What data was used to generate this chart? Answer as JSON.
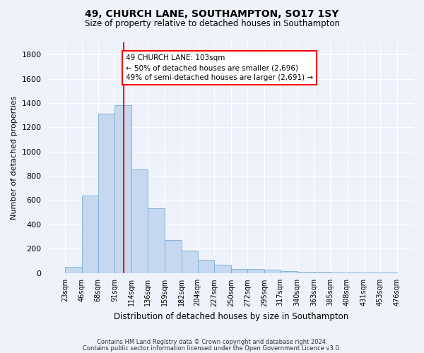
{
  "title1": "49, CHURCH LANE, SOUTHAMPTON, SO17 1SY",
  "title2": "Size of property relative to detached houses in Southampton",
  "xlabel": "Distribution of detached houses by size in Southampton",
  "ylabel": "Number of detached properties",
  "bar_color": "#c5d8f0",
  "bar_edgecolor": "#7aadd4",
  "background_color": "#eef2fb",
  "grid_color": "#ffffff",
  "vline_x": 103,
  "vline_color": "red",
  "bin_edges": [
    23,
    46,
    68,
    91,
    114,
    136,
    159,
    182,
    204,
    227,
    250,
    272,
    295,
    317,
    340,
    363,
    385,
    408,
    431,
    453,
    476
  ],
  "bar_heights": [
    50,
    640,
    1310,
    1380,
    850,
    530,
    270,
    185,
    105,
    65,
    35,
    35,
    28,
    15,
    10,
    8,
    5,
    5,
    5,
    5
  ],
  "annotation_line1": "49 CHURCH LANE: 103sqm",
  "annotation_line2": "← 50% of detached houses are smaller (2,696)",
  "annotation_line3": "49% of semi-detached houses are larger (2,691) →",
  "annotation_box_color": "white",
  "annotation_box_edgecolor": "red",
  "ylim": [
    0,
    1900
  ],
  "yticks": [
    0,
    200,
    400,
    600,
    800,
    1000,
    1200,
    1400,
    1600,
    1800
  ],
  "footer1": "Contains HM Land Registry data © Crown copyright and database right 2024.",
  "footer2": "Contains public sector information licensed under the Open Government Licence v3.0."
}
